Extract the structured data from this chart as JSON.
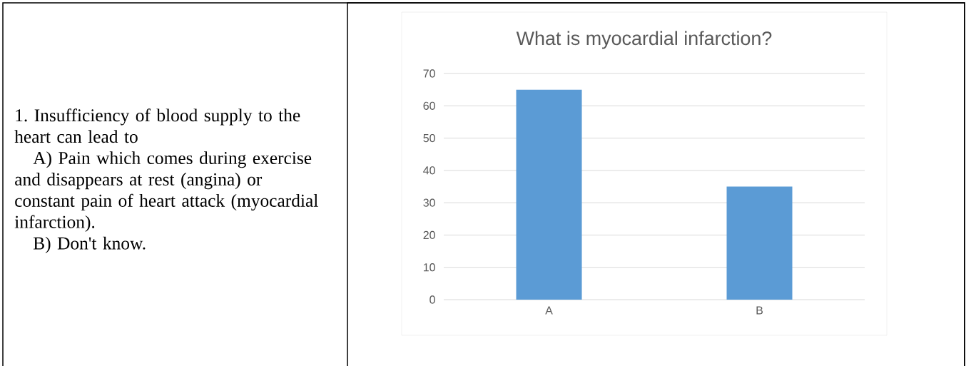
{
  "chart_data": {
    "type": "bar",
    "title": "What is myocardial infarction?",
    "categories": [
      "A",
      "B"
    ],
    "values": [
      65,
      35
    ],
    "color": "#5b9bd5",
    "ylim": [
      0,
      70
    ],
    "yticks": [
      0,
      10,
      20,
      30,
      40,
      50,
      60,
      70
    ],
    "grid": "y",
    "annotations": [
      "1. Insufficiency of blood supply to the heart can lead to",
      "A) Pain which comes during exercise and disappears at rest (angina) or constant pain of heart attack (myocardial infarction).",
      "B) Don't know."
    ]
  }
}
